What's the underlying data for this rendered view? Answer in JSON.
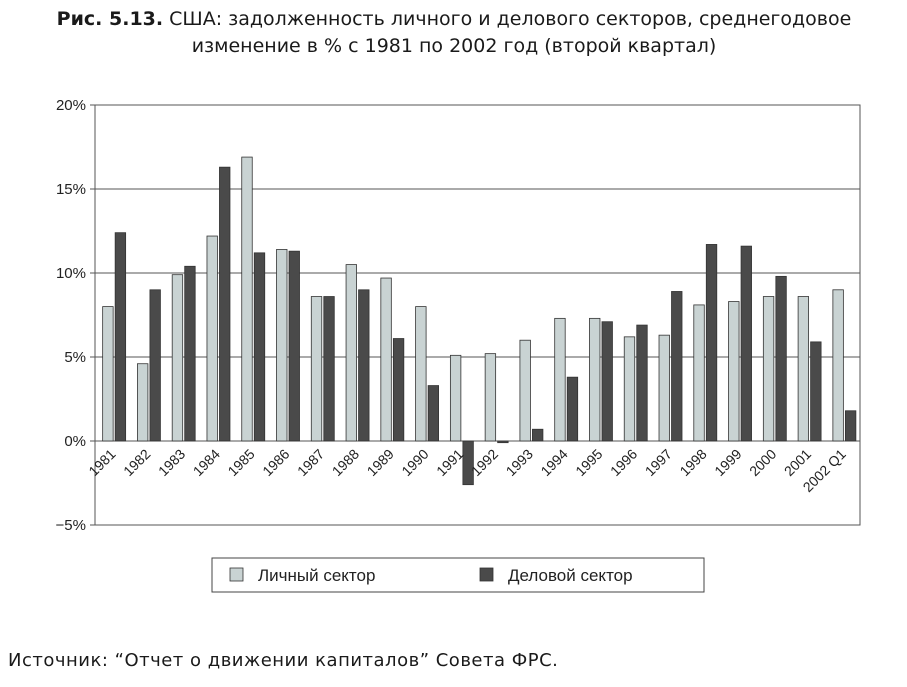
{
  "caption": {
    "fig_label": "Рис. 5.13.",
    "line1": "США: задолженность личного и делового секторов, среднегодовое",
    "line2": "изменение в % с 1981 по 2002 год (второй квартал)"
  },
  "source": "Источник: “Отчет о движении капиталов” Совета ФРС.",
  "chart_data": {
    "type": "bar",
    "title": "",
    "xlabel": "",
    "ylabel": "",
    "ylim": [
      -5,
      20
    ],
    "yticks": [
      -5,
      0,
      5,
      10,
      15,
      20
    ],
    "ytick_labels": [
      "−5%",
      "0%",
      "5%",
      "10%",
      "15%",
      "20%"
    ],
    "grid": true,
    "legend_position": "bottom",
    "categories": [
      "1981",
      "1982",
      "1983",
      "1984",
      "1985",
      "1986",
      "1987",
      "1988",
      "1989",
      "1990",
      "1991",
      "1992",
      "1993",
      "1994",
      "1995",
      "1996",
      "1997",
      "1998",
      "1999",
      "2000",
      "2001",
      "2002 Q1"
    ],
    "series": [
      {
        "name": "Личный сектор",
        "color": "#c9d3d3",
        "values": [
          8.0,
          4.6,
          9.9,
          12.2,
          16.9,
          11.4,
          8.6,
          10.5,
          9.7,
          8.0,
          5.1,
          5.2,
          6.0,
          7.3,
          7.3,
          6.2,
          6.3,
          8.1,
          8.3,
          8.6,
          8.6,
          9.0
        ]
      },
      {
        "name": "Деловой сектор",
        "color": "#4a4a4a",
        "values": [
          12.4,
          9.0,
          10.4,
          16.3,
          11.2,
          11.3,
          8.6,
          9.0,
          6.1,
          3.3,
          -2.6,
          -0.1,
          0.7,
          3.8,
          7.1,
          6.9,
          8.9,
          11.7,
          11.6,
          9.8,
          5.9,
          1.8
        ]
      }
    ]
  }
}
